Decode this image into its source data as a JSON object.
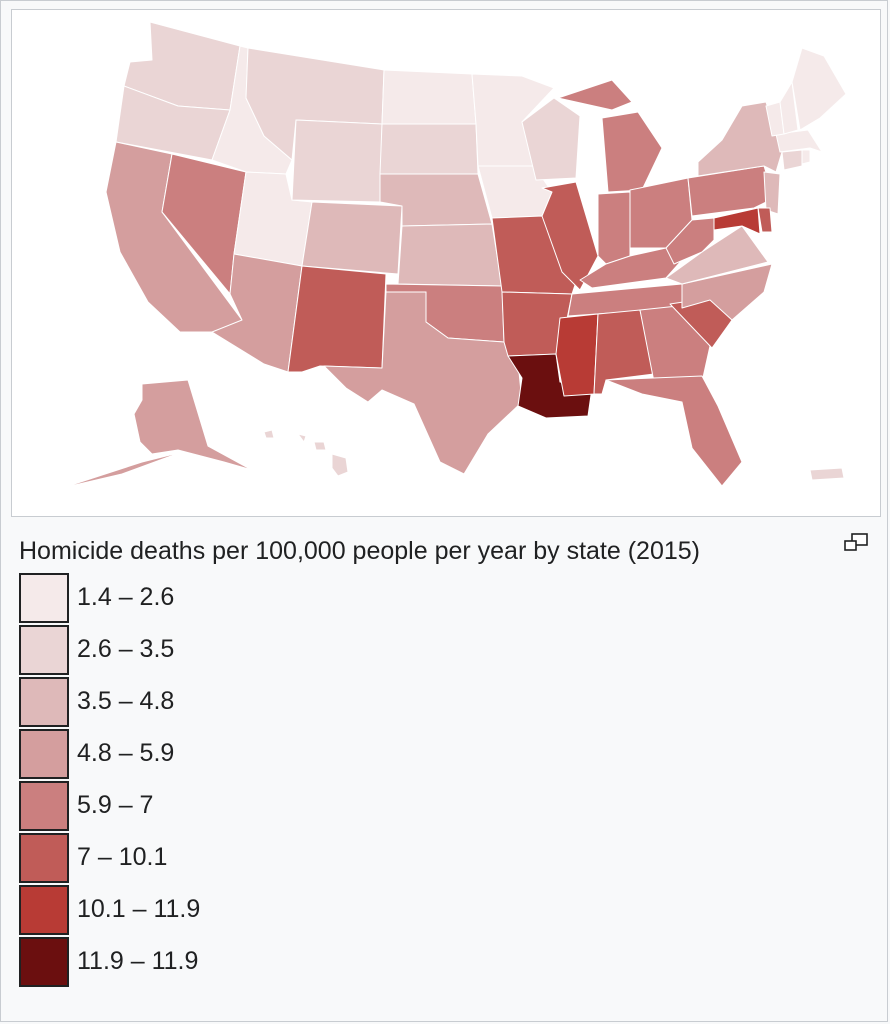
{
  "caption": "Homicide deaths per 100,000 people per year by state (2015)",
  "icons": {
    "enlarge": "magnify-clip-icon"
  },
  "legend": [
    {
      "label": "1.4 – 2.6",
      "color": "#f5eaea"
    },
    {
      "label": "2.6 – 3.5",
      "color": "#ead5d5"
    },
    {
      "label": "3.5 – 4.8",
      "color": "#deb9b9"
    },
    {
      "label": "4.8 – 5.9",
      "color": "#d49e9e"
    },
    {
      "label": "5.9 – 7",
      "color": "#cb7f7f"
    },
    {
      "label": "7 – 10.1",
      "color": "#c05c58"
    },
    {
      "label": "10.1 – 11.9",
      "color": "#b83b35"
    },
    {
      "label": "11.9 – 11.9",
      "color": "#6b0f0f"
    }
  ],
  "states": [
    {
      "id": "WA",
      "bin": 1
    },
    {
      "id": "OR",
      "bin": 1
    },
    {
      "id": "CA",
      "bin": 3
    },
    {
      "id": "ID",
      "bin": 0
    },
    {
      "id": "NV",
      "bin": 4
    },
    {
      "id": "UT",
      "bin": 0
    },
    {
      "id": "AZ",
      "bin": 3
    },
    {
      "id": "MT",
      "bin": 1
    },
    {
      "id": "WY",
      "bin": 1
    },
    {
      "id": "CO",
      "bin": 2
    },
    {
      "id": "NM",
      "bin": 5
    },
    {
      "id": "ND",
      "bin": 0
    },
    {
      "id": "SD",
      "bin": 1
    },
    {
      "id": "NE",
      "bin": 2
    },
    {
      "id": "KS",
      "bin": 2
    },
    {
      "id": "OK",
      "bin": 4
    },
    {
      "id": "TX",
      "bin": 3
    },
    {
      "id": "MN",
      "bin": 0
    },
    {
      "id": "IA",
      "bin": 0
    },
    {
      "id": "MO",
      "bin": 5
    },
    {
      "id": "AR",
      "bin": 5
    },
    {
      "id": "LA",
      "bin": 7
    },
    {
      "id": "WI",
      "bin": 1
    },
    {
      "id": "IL",
      "bin": 5
    },
    {
      "id": "MI",
      "bin": 4
    },
    {
      "id": "IN",
      "bin": 4
    },
    {
      "id": "OH",
      "bin": 4
    },
    {
      "id": "KY",
      "bin": 4
    },
    {
      "id": "TN",
      "bin": 4
    },
    {
      "id": "MS",
      "bin": 6
    },
    {
      "id": "AL",
      "bin": 5
    },
    {
      "id": "GA",
      "bin": 4
    },
    {
      "id": "FL",
      "bin": 4
    },
    {
      "id": "SC",
      "bin": 5
    },
    {
      "id": "NC",
      "bin": 3
    },
    {
      "id": "VA",
      "bin": 2
    },
    {
      "id": "WV",
      "bin": 4
    },
    {
      "id": "PA",
      "bin": 4
    },
    {
      "id": "NY",
      "bin": 2
    },
    {
      "id": "NJ",
      "bin": 2
    },
    {
      "id": "DE",
      "bin": 5
    },
    {
      "id": "MD",
      "bin": 6
    },
    {
      "id": "CT",
      "bin": 1
    },
    {
      "id": "RI",
      "bin": 0
    },
    {
      "id": "MA",
      "bin": 0
    },
    {
      "id": "VT",
      "bin": 0
    },
    {
      "id": "NH",
      "bin": 0
    },
    {
      "id": "ME",
      "bin": 0
    },
    {
      "id": "AK",
      "bin": 3
    },
    {
      "id": "HI",
      "bin": 1
    },
    {
      "id": "PR",
      "bin": 1
    }
  ]
}
